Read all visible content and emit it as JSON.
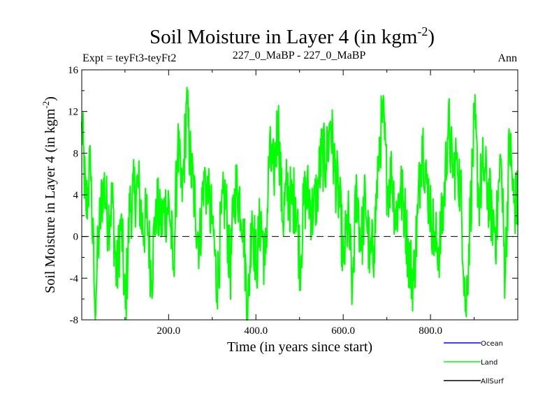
{
  "chart_data": {
    "type": "line",
    "title": "Soil Moisture in Layer 4 (in kgm",
    "title_sup": "-2",
    "title_end": ")",
    "subtitle_left": "Expt = teyFt3-teyFt2",
    "subtitle_center": "227_0_MaBP - 227_0_MaBP",
    "subtitle_right": "Ann",
    "xlabel": "Time (in years since start)",
    "ylabel": "Soil Moisture in Layer 4 (in kgm",
    "ylabel_sup": "-2",
    "ylabel_end": ")",
    "xlim": [
      1,
      1000
    ],
    "ylim": [
      -8,
      16
    ],
    "xticks": [
      200,
      400,
      600,
      800
    ],
    "xtick_labels": [
      "200.0",
      "400.0",
      "600.0",
      "800.0"
    ],
    "yticks": [
      -8,
      -4,
      0,
      4,
      8,
      12,
      16
    ],
    "ytick_labels": [
      "-8",
      "-4",
      "0",
      "4",
      "8",
      "12",
      "16"
    ],
    "zero_line": 0,
    "legend": [
      {
        "name": "Ocean",
        "color": "#0000ff"
      },
      {
        "name": "Land",
        "color": "#00ff00"
      },
      {
        "name": "AllSurf",
        "color": "#000000"
      }
    ],
    "series": [
      {
        "name": "Land",
        "color": "#00ff00",
        "n_years": 1000,
        "values_every_10_years": [
          11.0,
          2.5,
          6.8,
          -6.4,
          0.5,
          5.6,
          1.5,
          3.5,
          -4.1,
          1.8,
          -7.0,
          2.6,
          4.1,
          4.8,
          0.6,
          1.9,
          -4.2,
          3.6,
          1.0,
          2.5,
          3.2,
          -3.0,
          8.6,
          3.3,
          12.7,
          6.7,
          2.8,
          -0.8,
          6.3,
          3.3,
          1.5,
          -5.4,
          2.3,
          3.7,
          -3.8,
          4.6,
          4.2,
          1.7,
          -7.9,
          2.5,
          -2.9,
          1.9,
          -2.8,
          7.7,
          6.0,
          11.3,
          1.4,
          4.8,
          3.2,
          3.8,
          -2.5,
          3.6,
          4.1,
          1.8,
          4.6,
          7.9,
          7.0,
          11.1,
          6.2,
          3.5,
          -2.5,
          1.9,
          -4.9,
          5.0,
          -1.1,
          3.9,
          -2.3,
          -0.9,
          7.8,
          11.9,
          4.7,
          5.9,
          1.9,
          4.6,
          2.2,
          -2.3,
          -4.3,
          2.2,
          9.7,
          5.3,
          2.6,
          -0.8,
          -0.8,
          3.4,
          11.5,
          5.6,
          8.1,
          3.0,
          -7.1,
          2.0,
          11.2,
          3.6,
          6.8,
          4.5,
          2.1,
          0.4,
          7.5,
          -4.0,
          9.3,
          3.2
        ]
      },
      {
        "name": "Ocean",
        "color": "#0000ff",
        "values": []
      },
      {
        "name": "AllSurf",
        "color": "#000000",
        "values": []
      }
    ]
  }
}
